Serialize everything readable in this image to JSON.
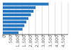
{
  "chart_data": {
    "type": "bar",
    "orientation": "horizontal",
    "categories": [
      null,
      null,
      null,
      null,
      null,
      null,
      null,
      null,
      null
    ],
    "values": [
      3500,
      2500,
      2350,
      2150,
      1950,
      1800,
      1650,
      1500,
      1200
    ],
    "color": "#2979c2",
    "xlim": [
      0,
      5000
    ],
    "xticks": [
      0,
      500,
      {
        "value": 1000,
        "label": "1,000"
      },
      {
        "value": 1500,
        "label": "1,500"
      },
      {
        "value": 2000,
        "label": "2,000"
      },
      {
        "value": 2500,
        "label": "2,500"
      },
      {
        "value": 3000,
        "label": "3,000"
      },
      {
        "value": 3500,
        "label": "3,500"
      },
      {
        "value": 4000,
        "label": "4,000"
      },
      {
        "value": 4500,
        "label": "4,500"
      }
    ],
    "grid": true,
    "tick_labels": "x"
  }
}
